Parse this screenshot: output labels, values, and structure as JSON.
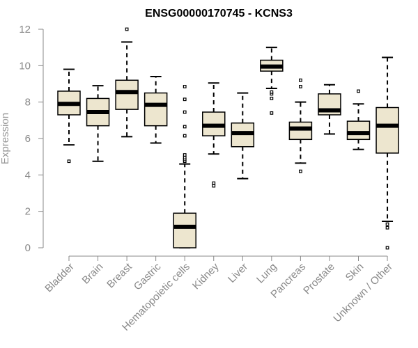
{
  "chart_data": {
    "type": "boxplot",
    "title": "ENSG00000170745 - KCNS3",
    "ylabel": "Expression",
    "xlabel": "",
    "ylim": [
      0,
      12
    ],
    "yticks": [
      0,
      2,
      4,
      6,
      8,
      10,
      12
    ],
    "grid": false,
    "colors": {
      "box_fill": "#ede6cf",
      "box_stroke": "#000000",
      "median": "#000000",
      "axis": "#888888",
      "tick_text": "#888888",
      "ylabel_text": "#999999",
      "title_text": "#000000"
    },
    "categories": [
      "Bladder",
      "Brain",
      "Breast",
      "Gastric",
      "Hematopoietic cells",
      "Kidney",
      "Liver",
      "Lung",
      "Pancreas",
      "Prostate",
      "Skin",
      "Unknown / Other"
    ],
    "boxes": [
      {
        "category": "Bladder",
        "whisker_low": 5.65,
        "q1": 7.3,
        "median": 7.9,
        "q3": 8.6,
        "whisker_high": 9.8,
        "outliers": [
          4.75
        ]
      },
      {
        "category": "Brain",
        "whisker_low": 4.75,
        "q1": 6.7,
        "median": 7.45,
        "q3": 8.2,
        "whisker_high": 8.9,
        "outliers": []
      },
      {
        "category": "Breast",
        "whisker_low": 6.1,
        "q1": 7.6,
        "median": 8.55,
        "q3": 9.2,
        "whisker_high": 11.3,
        "outliers": [
          12.0
        ]
      },
      {
        "category": "Gastric",
        "whisker_low": 5.75,
        "q1": 6.7,
        "median": 7.85,
        "q3": 8.5,
        "whisker_high": 9.4,
        "outliers": []
      },
      {
        "category": "Hematopoietic cells",
        "whisker_low": 0.0,
        "q1": 0.0,
        "median": 1.15,
        "q3": 1.9,
        "whisker_high": 4.6,
        "outliers": [
          4.75,
          4.85,
          4.95,
          5.1,
          6.15,
          6.65,
          7.45,
          8.15,
          8.85
        ]
      },
      {
        "category": "Kidney",
        "whisker_low": 5.15,
        "q1": 6.15,
        "median": 6.7,
        "q3": 7.45,
        "whisker_high": 9.05,
        "outliers": [
          3.4,
          3.55
        ]
      },
      {
        "category": "Liver",
        "whisker_low": 3.8,
        "q1": 5.55,
        "median": 6.3,
        "q3": 6.85,
        "whisker_high": 8.5,
        "outliers": []
      },
      {
        "category": "Lung",
        "whisker_low": 8.75,
        "q1": 9.7,
        "median": 9.95,
        "q3": 10.3,
        "whisker_high": 11.0,
        "outliers": [
          7.4,
          8.2,
          8.45,
          8.55
        ]
      },
      {
        "category": "Pancreas",
        "whisker_low": 4.65,
        "q1": 5.95,
        "median": 6.55,
        "q3": 6.9,
        "whisker_high": 8.0,
        "outliers": [
          4.2,
          8.85,
          9.2
        ]
      },
      {
        "category": "Prostate",
        "whisker_low": 6.25,
        "q1": 7.3,
        "median": 7.55,
        "q3": 8.45,
        "whisker_high": 8.95,
        "outliers": []
      },
      {
        "category": "Skin",
        "whisker_low": 5.4,
        "q1": 5.95,
        "median": 6.3,
        "q3": 6.95,
        "whisker_high": 7.9,
        "outliers": [
          8.6
        ]
      },
      {
        "category": "Unknown / Other",
        "whisker_low": 1.45,
        "q1": 5.2,
        "median": 6.7,
        "q3": 7.7,
        "whisker_high": 10.45,
        "outliers": [
          0.0,
          1.1,
          1.3
        ]
      }
    ]
  }
}
